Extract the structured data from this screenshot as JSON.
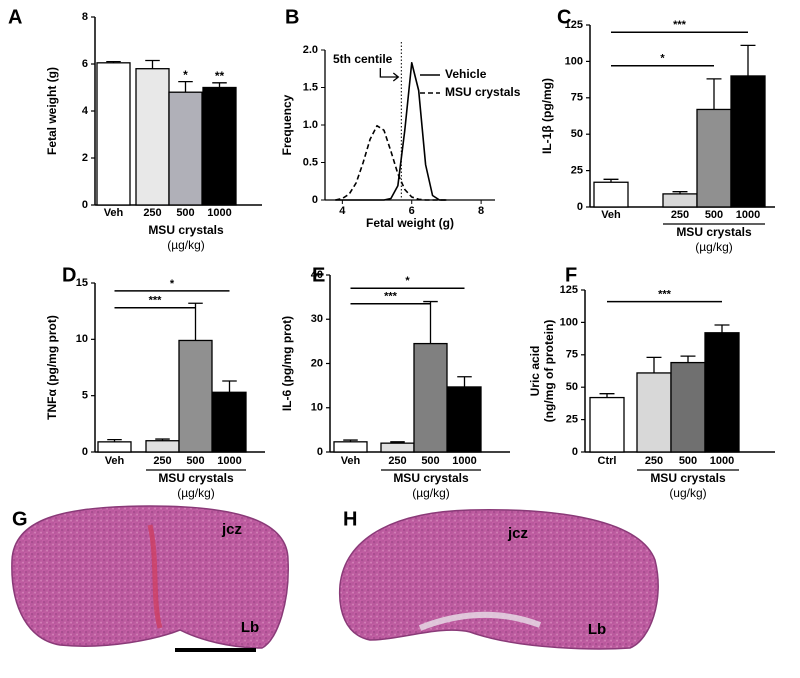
{
  "chart_data": [
    {
      "type": "bar",
      "panel": "A",
      "ylabel": "Fetal weight (g)",
      "categories": [
        "Veh",
        "250",
        "500",
        "1000"
      ],
      "values": [
        6.05,
        5.8,
        4.8,
        5.0
      ],
      "errors": [
        0.05,
        0.35,
        0.45,
        0.2
      ],
      "colors": [
        "#ffffff",
        "#e8e8e8",
        "#b0b0b8",
        "#000000"
      ],
      "ylim": [
        0,
        8
      ],
      "yticks": [
        0,
        2,
        4,
        6,
        8
      ],
      "xlabel": "MSU crystals",
      "xunit": "(µg/kg)",
      "significance": [
        {
          "bar": 2,
          "label": "*"
        },
        {
          "bar": 3,
          "label": "**"
        }
      ]
    },
    {
      "type": "line",
      "panel": "B",
      "ylabel": "Frequency",
      "xlabel": "Fetal weight (g)",
      "x": [
        3.8,
        4.0,
        4.2,
        4.4,
        4.6,
        4.8,
        5.0,
        5.2,
        5.4,
        5.6,
        5.8,
        6.0,
        6.2,
        6.4,
        6.6,
        6.8,
        7.0
      ],
      "series": [
        {
          "name": "Vehicle",
          "color": "#000000",
          "dash": false,
          "values": [
            0,
            0,
            0,
            0,
            0,
            0,
            0,
            0,
            0.02,
            0.19,
            0.93,
            1.83,
            1.46,
            0.47,
            0.06,
            0,
            0
          ]
        },
        {
          "name": "MSU crystals",
          "color": "#000000",
          "dash": true,
          "values": [
            0,
            0.02,
            0.08,
            0.23,
            0.5,
            0.81,
            0.99,
            0.93,
            0.65,
            0.35,
            0.14,
            0.04,
            0.01,
            0,
            0,
            0,
            0
          ]
        }
      ],
      "xlim": [
        3.5,
        8.4
      ],
      "xticks": [
        4,
        6,
        8
      ],
      "ylim": [
        0,
        2
      ],
      "yticks": [
        0,
        0.5,
        {
          "value": 1,
          "label": "1.0"
        },
        1.5,
        {
          "value": 2,
          "label": "2.0"
        }
      ],
      "legend": "upper right",
      "annotation": "5th centile",
      "centile_line": 5.7
    },
    {
      "type": "bar",
      "panel": "C",
      "ylabel": "IL-1β (pg/mg)",
      "categories": [
        "Veh",
        "250",
        "500",
        "1000"
      ],
      "values": [
        17,
        9,
        67,
        90
      ],
      "errors": [
        2,
        1.5,
        21,
        21
      ],
      "colors": [
        "#ffffff",
        "#d8d8d8",
        "#909090",
        "#000000"
      ],
      "ylim": [
        0,
        125
      ],
      "yticks": [
        0,
        25,
        50,
        75,
        100,
        125
      ],
      "xlabel": "MSU crystals",
      "xunit": "(µg/kg)",
      "significance": [
        {
          "from": 0,
          "to": 3,
          "y": 120,
          "label": "***"
        },
        {
          "from": 0,
          "to": 2,
          "y": 97,
          "label": "*"
        }
      ]
    },
    {
      "type": "bar",
      "panel": "D",
      "ylabel": "TNFα (pg/mg prot)",
      "categories": [
        "Veh",
        "250",
        "500",
        "1000"
      ],
      "values": [
        0.9,
        1.0,
        9.9,
        5.3
      ],
      "errors": [
        0.2,
        0.15,
        3.3,
        1.0
      ],
      "colors": [
        "#ffffff",
        "#e0e0e0",
        "#909090",
        "#000000"
      ],
      "ylim": [
        0,
        15
      ],
      "yticks": [
        0,
        5,
        10,
        15
      ],
      "xlabel": "MSU crystals",
      "xunit": "(µg/kg)",
      "significance": [
        {
          "from": 0,
          "to": 2,
          "y": 12.8,
          "label": "***"
        },
        {
          "from": 0,
          "to": 3,
          "y": 14.3,
          "label": "*"
        }
      ]
    },
    {
      "type": "bar",
      "panel": "E",
      "ylabel": "IL-6 (pg/mg prot)",
      "categories": [
        "Veh",
        "250",
        "500",
        "1000"
      ],
      "values": [
        2.3,
        2.0,
        24.5,
        14.7
      ],
      "errors": [
        0.4,
        0.3,
        9.5,
        2.3
      ],
      "colors": [
        "#ffffff",
        "#e0e0e0",
        "#808080",
        "#000000"
      ],
      "ylim": [
        0,
        40
      ],
      "yticks": [
        0,
        10,
        20,
        30,
        40
      ],
      "xlabel": "MSU crystals",
      "xunit": "(µg/kg)",
      "significance": [
        {
          "from": 0,
          "to": 2,
          "y": 33.5,
          "label": "***"
        },
        {
          "from": 0,
          "to": 3,
          "y": 37,
          "label": "*"
        }
      ]
    },
    {
      "type": "bar",
      "panel": "F",
      "ylabel": [
        "Uric acid",
        "(ng/mg of protein)"
      ],
      "categories": [
        "Ctrl",
        "250",
        "500",
        "1000"
      ],
      "values": [
        42,
        61,
        69,
        92
      ],
      "errors": [
        3,
        12,
        5,
        6
      ],
      "colors": [
        "#ffffff",
        "#d8d8d8",
        "#707070",
        "#000000"
      ],
      "ylim": [
        0,
        125
      ],
      "yticks": [
        0,
        25,
        50,
        75,
        100,
        125
      ],
      "xlabel": "MSU crystals",
      "xunit": "(ug/kg)",
      "significance": [
        {
          "from": 0,
          "to": 3,
          "y": 116,
          "label": "***"
        }
      ]
    }
  ],
  "images": [
    {
      "panel": "G",
      "labels": [
        "jcz",
        "Lb"
      ]
    },
    {
      "panel": "H",
      "labels": [
        "jcz",
        "Lb"
      ]
    }
  ]
}
